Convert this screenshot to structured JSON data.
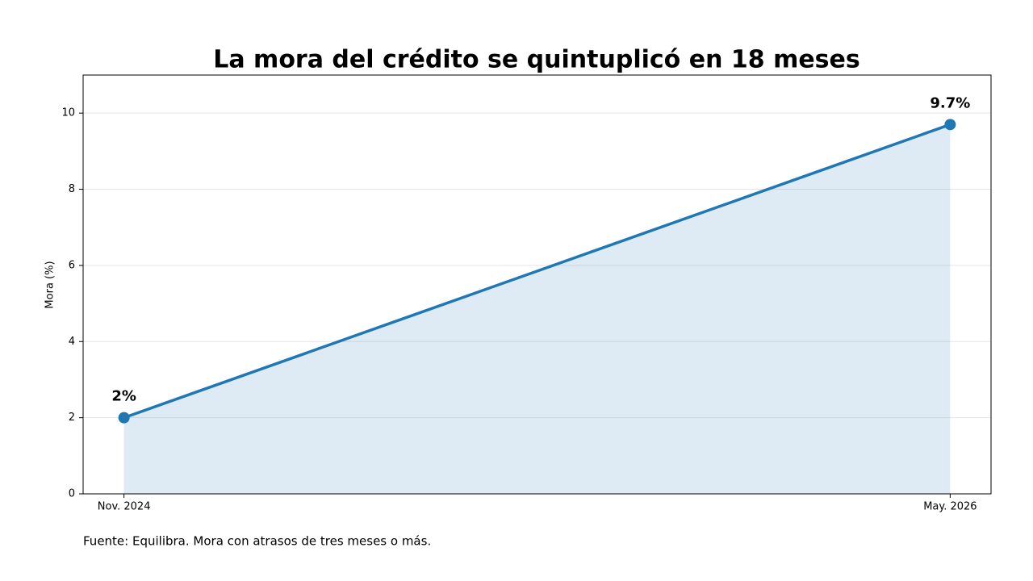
{
  "chart_data": {
    "type": "line",
    "title": "La mora del crédito se quintuplicó en 18 meses",
    "ylabel": "Mora (%)",
    "categories": [
      "Nov. 2024",
      "May. 2026"
    ],
    "values": [
      2,
      9.7
    ],
    "value_labels": [
      "2%",
      "9.7%"
    ],
    "color": "#1f77b4",
    "area": true,
    "ylim": [
      0,
      11
    ],
    "yticks": [
      0,
      2,
      4,
      6,
      8,
      10
    ],
    "grid": true,
    "source": "Fuente: Equilibra. Mora con atrasos de tres meses o más."
  }
}
